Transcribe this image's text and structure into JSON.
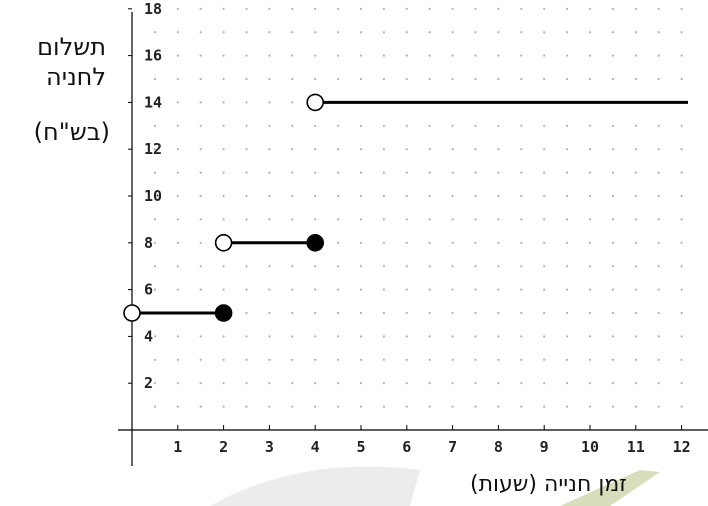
{
  "chart_data": {
    "type": "step",
    "ylabel_line1": "תשלום",
    "ylabel_line2": "לחניה",
    "ylabel_unit": "(בש\"ח)",
    "xlabel": "זמן חנייה (שעות)",
    "xlim": [
      0,
      12.2
    ],
    "ylim": [
      0,
      18
    ],
    "x_ticks": [
      "1",
      "2",
      "3",
      "4",
      "5",
      "6",
      "7",
      "8",
      "9",
      "10",
      "11",
      "12"
    ],
    "y_ticks": [
      "2",
      "4",
      "6",
      "8",
      "10",
      "12",
      "14",
      "16",
      "18"
    ],
    "grid": "dotted",
    "segments": [
      {
        "x_start": 0,
        "x_end": 2,
        "y": 5,
        "start_open": true,
        "end_open": false
      },
      {
        "x_start": 2,
        "x_end": 4,
        "y": 8,
        "start_open": true,
        "end_open": false
      },
      {
        "x_start": 4,
        "x_end": 12,
        "y": 14,
        "start_open": true,
        "end_open": null
      }
    ],
    "colors": {
      "line": "#000000",
      "axis": "#000000",
      "grid_dot": "#b0b0b0",
      "tick_text": "#222222",
      "watermark_green": "#a8b66a",
      "watermark_gray": "#c8c8c8"
    }
  }
}
